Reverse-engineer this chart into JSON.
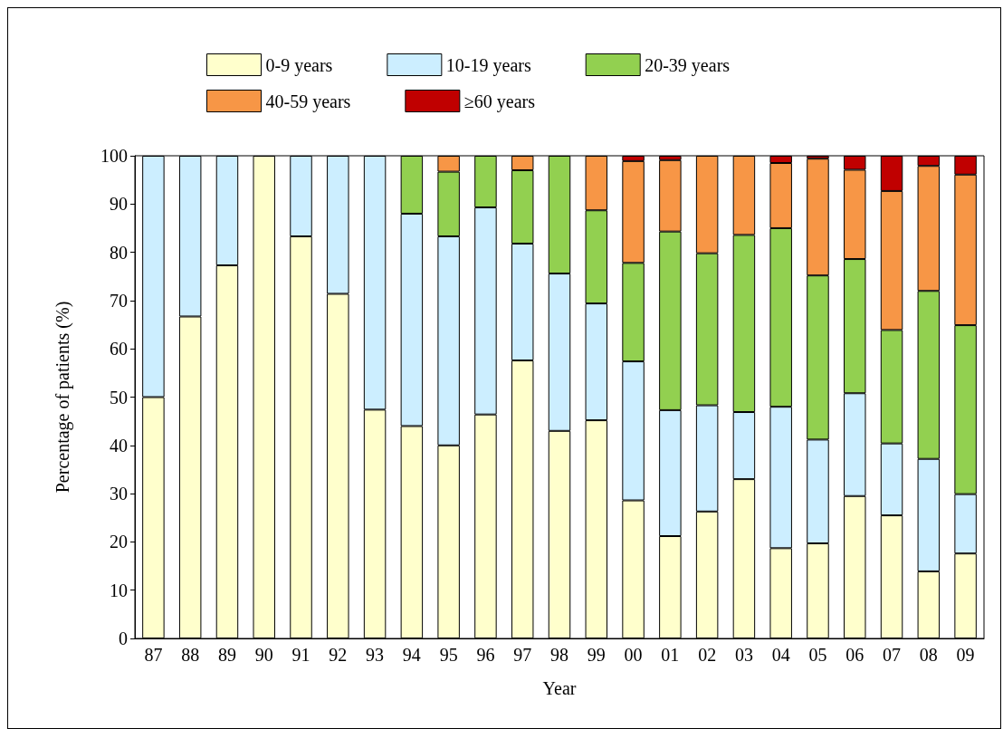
{
  "chart_data": {
    "type": "bar",
    "stacked": true,
    "xlabel": "Year",
    "ylabel": "Percentage of patients (%)",
    "categories": [
      "87",
      "88",
      "89",
      "90",
      "91",
      "92",
      "93",
      "94",
      "95",
      "96",
      "97",
      "98",
      "99",
      "00",
      "01",
      "02",
      "03",
      "04",
      "05",
      "06",
      "07",
      "08",
      "09"
    ],
    "ylim": [
      0,
      100
    ],
    "yticks": [
      0,
      10,
      20,
      30,
      40,
      50,
      60,
      70,
      80,
      90,
      100
    ],
    "grid": false,
    "legend": "top",
    "series": [
      {
        "name": "0-9 years",
        "color": "#ffffcc",
        "values": [
          50,
          66.7,
          77.3,
          100,
          83.3,
          71.4,
          47.4,
          44,
          40,
          46.4,
          57.6,
          43,
          45.2,
          28.6,
          21.2,
          26.3,
          33,
          18.7,
          19.7,
          29.5,
          25.5,
          13.9,
          17.6
        ]
      },
      {
        "name": "10-19 years",
        "color": "#cceeff",
        "values": [
          50,
          33.3,
          22.7,
          null,
          16.7,
          28.6,
          52.6,
          44,
          43.3,
          42.9,
          24.2,
          32.6,
          24.2,
          28.8,
          26.1,
          22,
          13.9,
          29.3,
          21.5,
          21.3,
          14.9,
          23.3,
          12.3
        ]
      },
      {
        "name": "20-39 years",
        "color": "#92d050",
        "values": [
          null,
          null,
          null,
          null,
          null,
          null,
          null,
          12,
          13.4,
          10.7,
          15.2,
          24.4,
          19.3,
          20.4,
          37,
          31.5,
          36.7,
          37,
          34,
          27.8,
          23.5,
          34.8,
          35
        ]
      },
      {
        "name": "40-59 years",
        "color": "#f79646",
        "values": [
          null,
          null,
          null,
          null,
          null,
          null,
          null,
          null,
          3.3,
          null,
          3,
          null,
          11.3,
          21.1,
          14.8,
          20.2,
          16.4,
          13.5,
          24.2,
          18.5,
          28.8,
          25.9,
          31.2
        ]
      },
      {
        "name": "≥60 years",
        "color": "#c00000",
        "values": [
          null,
          null,
          null,
          null,
          null,
          null,
          null,
          null,
          null,
          null,
          null,
          null,
          null,
          1.1,
          0.9,
          null,
          null,
          1.5,
          0.6,
          2.9,
          7.3,
          2.1,
          3.9
        ]
      }
    ]
  }
}
